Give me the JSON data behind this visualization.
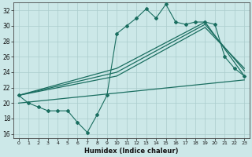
{
  "xlabel": "Humidex (Indice chaleur)",
  "bg_color": "#cce8e8",
  "grid_color": "#aacccc",
  "line_color": "#1a6e60",
  "xlim": [
    -0.5,
    23.5
  ],
  "ylim": [
    15.5,
    33.0
  ],
  "yticks": [
    16,
    18,
    20,
    22,
    24,
    26,
    28,
    30,
    32
  ],
  "xticks": [
    0,
    1,
    2,
    3,
    4,
    5,
    6,
    7,
    8,
    9,
    10,
    11,
    12,
    13,
    14,
    15,
    16,
    17,
    18,
    19,
    20,
    21,
    22,
    23
  ],
  "series1_x": [
    0,
    1,
    2,
    3,
    4,
    5,
    6,
    7,
    8,
    9,
    10,
    11,
    12,
    13,
    14,
    15,
    16,
    17,
    18,
    19,
    20,
    21,
    22,
    23
  ],
  "series1_y": [
    21.0,
    20.0,
    19.5,
    19.0,
    19.0,
    19.0,
    17.5,
    16.2,
    18.5,
    21.0,
    29.0,
    30.0,
    31.0,
    32.2,
    31.0,
    32.8,
    30.5,
    30.2,
    30.5,
    30.5,
    30.2,
    26.0,
    24.5,
    23.5
  ],
  "series2_x": [
    0,
    10,
    19,
    23
  ],
  "series2_y": [
    21.0,
    24.5,
    30.5,
    23.5
  ],
  "series3_x": [
    0,
    10,
    19,
    23
  ],
  "series3_y": [
    21.0,
    24.0,
    30.2,
    24.2
  ],
  "series4_x": [
    0,
    10,
    19,
    23
  ],
  "series4_y": [
    21.0,
    23.5,
    29.8,
    24.5
  ],
  "series5_x": [
    0,
    23
  ],
  "series5_y": [
    20.0,
    23.0
  ]
}
